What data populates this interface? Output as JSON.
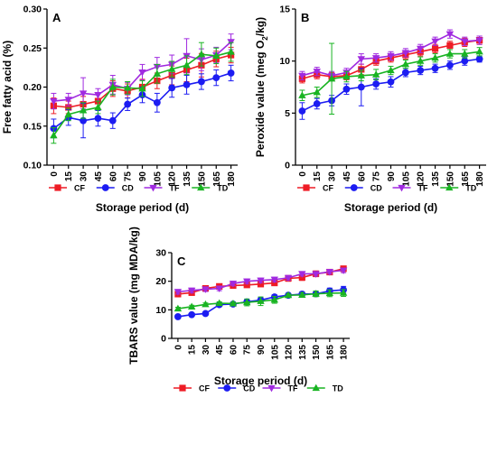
{
  "colors": {
    "CF": "#ee1c25",
    "CD": "#1c1cf2",
    "TF": "#a02ae0",
    "TD": "#19b422"
  },
  "markers": {
    "CF": "square",
    "CD": "circle",
    "TF": "triangle-down",
    "TD": "triangle-up"
  },
  "chart_data": [
    {
      "type": "line",
      "panel": "A",
      "xlabel": "Storage period (d)",
      "ylabel": "Free fatty acid (%)",
      "x": [
        0,
        15,
        30,
        45,
        60,
        75,
        90,
        105,
        120,
        135,
        150,
        165,
        180
      ],
      "x_tick_labels": [
        "0",
        "15",
        "30",
        "45",
        "60",
        "75",
        "90",
        "105",
        "120",
        "135",
        "150",
        "165",
        "180"
      ],
      "ylim": [
        0.1,
        0.3
      ],
      "y_ticks": [
        0.1,
        0.15,
        0.2,
        0.25,
        0.3
      ],
      "y_tick_labels": [
        "0.10",
        "0.15",
        "0.20",
        "0.25",
        "0.30"
      ],
      "legend_position": "bottom",
      "series": [
        {
          "name": "CF",
          "values": [
            0.176,
            0.174,
            0.178,
            0.182,
            0.198,
            0.195,
            0.2,
            0.208,
            0.215,
            0.222,
            0.228,
            0.236,
            0.241
          ],
          "errors": [
            0.01,
            0.008,
            0.01,
            0.01,
            0.01,
            0.009,
            0.01,
            0.01,
            0.012,
            0.015,
            0.015,
            0.01,
            0.01
          ]
        },
        {
          "name": "CD",
          "values": [
            0.147,
            0.161,
            0.157,
            0.16,
            0.157,
            0.178,
            0.19,
            0.18,
            0.199,
            0.203,
            0.207,
            0.212,
            0.218
          ],
          "errors": [
            0.012,
            0.01,
            0.022,
            0.01,
            0.01,
            0.008,
            0.01,
            0.012,
            0.012,
            0.012,
            0.01,
            0.01,
            0.01
          ]
        },
        {
          "name": "TF",
          "values": [
            0.182,
            0.184,
            0.192,
            0.19,
            0.203,
            0.198,
            0.219,
            0.226,
            0.229,
            0.24,
            0.235,
            0.241,
            0.258
          ],
          "errors": [
            0.01,
            0.008,
            0.02,
            0.008,
            0.012,
            0.008,
            0.01,
            0.012,
            0.012,
            0.022,
            0.014,
            0.01,
            0.01
          ]
        },
        {
          "name": "TD",
          "values": [
            0.138,
            0.165,
            0.17,
            0.174,
            0.2,
            0.199,
            0.198,
            0.217,
            0.223,
            0.228,
            0.242,
            0.24,
            0.245
          ],
          "errors": [
            0.01,
            0.008,
            0.01,
            0.008,
            0.01,
            0.008,
            0.01,
            0.012,
            0.01,
            0.012,
            0.015,
            0.01,
            0.012
          ]
        }
      ]
    },
    {
      "type": "line",
      "panel": "B",
      "xlabel": "Storage period (d)",
      "ylabel_parts": [
        "Peroxide value (meg O",
        "2",
        "/kg)"
      ],
      "x": [
        0,
        15,
        30,
        45,
        60,
        75,
        90,
        105,
        120,
        135,
        150,
        165,
        180
      ],
      "x_tick_labels": [
        "0",
        "15",
        "30",
        "45",
        "60",
        "75",
        "90",
        "105",
        "120",
        "135",
        "150",
        "165",
        "180"
      ],
      "ylim": [
        0,
        15
      ],
      "y_ticks": [
        0,
        5,
        10,
        15
      ],
      "y_tick_labels": [
        "0",
        "5",
        "10",
        "15"
      ],
      "legend_position": "bottom",
      "series": [
        {
          "name": "CF",
          "values": [
            8.3,
            8.7,
            8.5,
            8.6,
            9.2,
            10.0,
            10.3,
            10.6,
            10.9,
            11.2,
            11.5,
            11.8,
            12.0
          ],
          "errors": [
            0.4,
            0.4,
            0.4,
            0.4,
            0.5,
            0.4,
            0.4,
            0.4,
            0.4,
            0.4,
            0.4,
            0.4,
            0.4
          ]
        },
        {
          "name": "CD",
          "values": [
            5.2,
            5.9,
            6.2,
            7.3,
            7.5,
            7.8,
            8.0,
            8.9,
            9.1,
            9.3,
            9.6,
            10.0,
            10.2
          ],
          "errors": [
            0.8,
            0.5,
            0.5,
            0.5,
            1.8,
            0.5,
            0.5,
            0.4,
            0.4,
            0.4,
            0.4,
            0.4,
            0.3
          ]
        },
        {
          "name": "TF",
          "values": [
            8.6,
            9.0,
            8.6,
            8.9,
            10.2,
            10.3,
            10.5,
            10.8,
            11.2,
            11.9,
            12.6,
            11.9,
            12.0
          ],
          "errors": [
            0.4,
            0.4,
            0.4,
            0.4,
            0.5,
            0.4,
            0.4,
            0.4,
            0.4,
            0.4,
            0.4,
            0.4,
            0.4
          ]
        },
        {
          "name": "TD",
          "values": [
            6.7,
            7.0,
            8.3,
            8.5,
            8.6,
            8.7,
            9.1,
            9.7,
            10.0,
            10.3,
            10.7,
            10.7,
            10.9
          ],
          "errors": [
            0.5,
            0.5,
            3.4,
            0.5,
            0.5,
            0.5,
            0.4,
            0.4,
            0.4,
            0.4,
            0.4,
            0.4,
            0.4
          ]
        }
      ]
    },
    {
      "type": "line",
      "panel": "C",
      "xlabel": "Storage period (d)",
      "ylabel": "TBARS value (mg MDA/kg)",
      "x": [
        0,
        15,
        30,
        45,
        60,
        75,
        90,
        105,
        120,
        135,
        150,
        165,
        180
      ],
      "x_tick_labels": [
        "0",
        "15",
        "30",
        "45",
        "60",
        "75",
        "90",
        "105",
        "120",
        "135",
        "150",
        "165",
        "180"
      ],
      "ylim": [
        0,
        30
      ],
      "y_ticks": [
        0,
        10,
        20,
        30
      ],
      "y_tick_labels": [
        "0",
        "10",
        "20",
        "30"
      ],
      "legend_position": "bottom",
      "series": [
        {
          "name": "CF",
          "values": [
            15.5,
            16.0,
            17.5,
            18.2,
            18.5,
            18.7,
            19.0,
            19.4,
            21.0,
            21.3,
            22.6,
            23.2,
            24.4
          ],
          "errors": [
            0.8,
            0.8,
            0.8,
            0.8,
            0.8,
            0.8,
            0.8,
            0.8,
            1.0,
            1.0,
            1.0,
            0.8,
            0.8
          ]
        },
        {
          "name": "CD",
          "values": [
            7.6,
            8.3,
            8.7,
            11.8,
            12.0,
            12.8,
            13.4,
            14.5,
            15.1,
            15.5,
            15.6,
            16.6,
            17.0
          ],
          "errors": [
            0.5,
            0.5,
            0.6,
            0.6,
            0.6,
            0.6,
            0.8,
            0.8,
            0.6,
            0.8,
            0.8,
            1.0,
            1.2
          ]
        },
        {
          "name": "TF",
          "values": [
            16.3,
            16.8,
            17.2,
            17.5,
            19.2,
            20.0,
            20.3,
            20.6,
            21.2,
            22.6,
            22.6,
            23.3,
            23.8
          ],
          "errors": [
            0.8,
            0.8,
            0.8,
            0.8,
            0.8,
            0.8,
            0.8,
            0.8,
            0.8,
            0.8,
            0.8,
            0.8,
            0.8
          ]
        },
        {
          "name": "TD",
          "values": [
            10.4,
            11.1,
            11.9,
            12.3,
            12.2,
            12.6,
            13.0,
            13.5,
            15.1,
            15.2,
            15.6,
            15.8,
            15.9
          ],
          "errors": [
            0.5,
            0.5,
            0.5,
            0.5,
            0.5,
            1.2,
            1.5,
            1.2,
            0.5,
            0.8,
            1.0,
            1.2,
            1.2
          ]
        }
      ]
    }
  ]
}
